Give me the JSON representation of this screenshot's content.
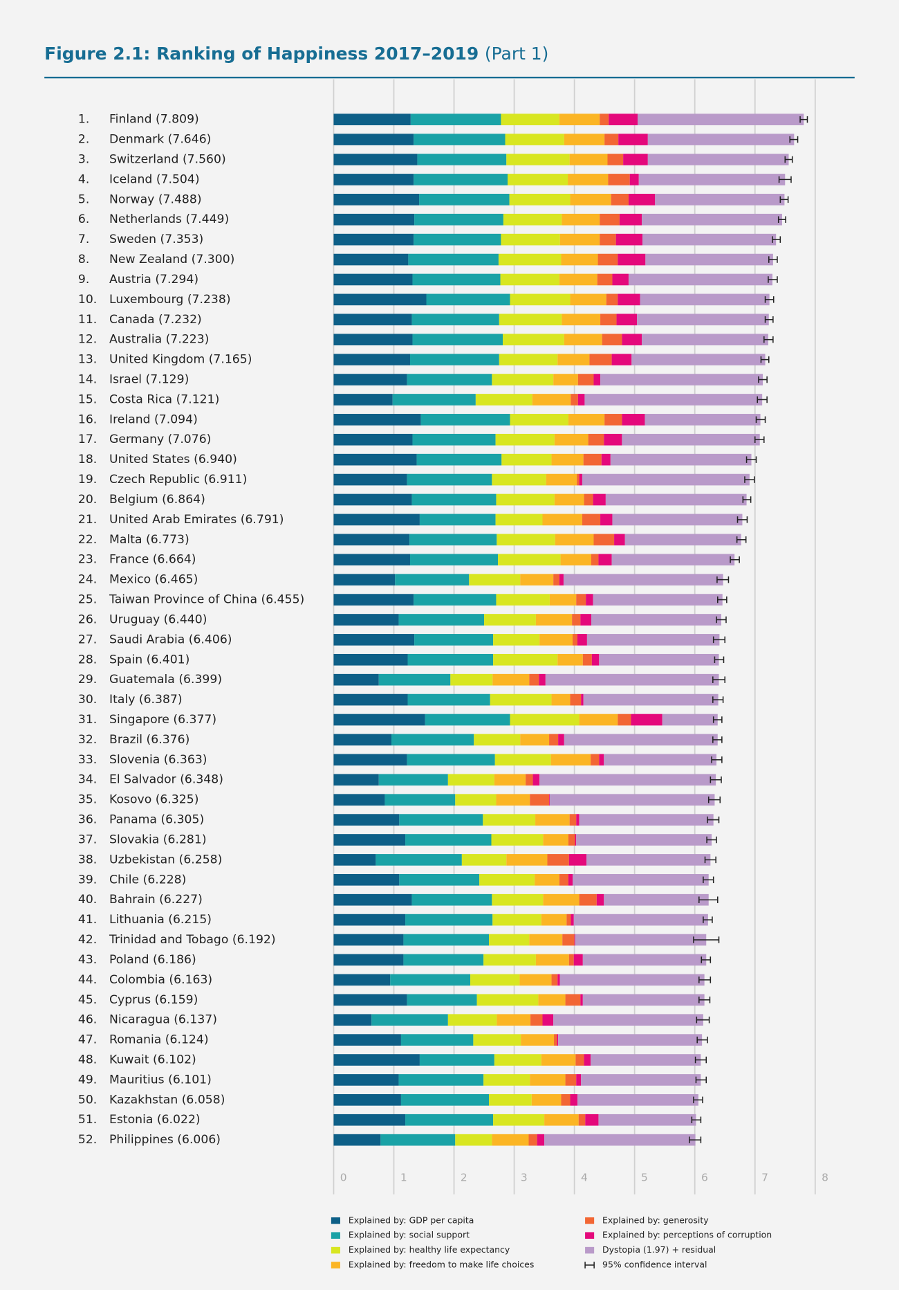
{
  "chart_data": {
    "type": "bar",
    "orientation": "horizontal",
    "stacked": true,
    "title": "Figure 2.1: Ranking of Happiness 2017–2019",
    "subtitle": "(Part 1)",
    "ranks": [
      "1.",
      "2.",
      "3.",
      "4.",
      "5.",
      "6.",
      "7.",
      "8.",
      "9.",
      "10.",
      "11.",
      "12.",
      "13.",
      "14.",
      "15.",
      "16.",
      "17.",
      "18.",
      "19.",
      "20.",
      "21.",
      "22.",
      "23.",
      "24.",
      "25.",
      "26.",
      "27.",
      "28.",
      "29.",
      "30.",
      "31.",
      "32.",
      "33.",
      "34.",
      "35.",
      "36.",
      "37.",
      "38.",
      "39.",
      "40.",
      "41.",
      "42.",
      "43.",
      "44.",
      "45.",
      "46.",
      "47.",
      "48.",
      "49.",
      "50.",
      "51.",
      "52."
    ],
    "categories": [
      "Finland (7.809)",
      "Denmark (7.646)",
      "Switzerland (7.560)",
      "Iceland (7.504)",
      "Norway (7.488)",
      "Netherlands (7.449)",
      "Sweden (7.353)",
      "New Zealand (7.300)",
      "Austria (7.294)",
      "Luxembourg (7.238)",
      "Canada (7.232)",
      "Australia (7.223)",
      "United Kingdom (7.165)",
      "Israel (7.129)",
      "Costa Rica (7.121)",
      "Ireland (7.094)",
      "Germany (7.076)",
      "United States (6.940)",
      "Czech Republic (6.911)",
      "Belgium (6.864)",
      "United Arab Emirates (6.791)",
      "Malta (6.773)",
      "France (6.664)",
      "Mexico (6.465)",
      "Taiwan Province of China (6.455)",
      "Uruguay (6.440)",
      "Saudi Arabia (6.406)",
      "Spain (6.401)",
      "Guatemala (6.399)",
      "Italy (6.387)",
      "Singapore (6.377)",
      "Brazil (6.376)",
      "Slovenia (6.363)",
      "El Salvador (6.348)",
      "Kosovo (6.325)",
      "Panama (6.305)",
      "Slovakia (6.281)",
      "Uzbekistan (6.258)",
      "Chile (6.228)",
      "Bahrain (6.227)",
      "Lithuania (6.215)",
      "Trinidad and Tobago (6.192)",
      "Poland (6.186)",
      "Colombia (6.163)",
      "Cyprus (6.159)",
      "Nicaragua (6.137)",
      "Romania (6.124)",
      "Kuwait (6.102)",
      "Mauritius (6.101)",
      "Kazakhstan (6.058)",
      "Estonia (6.022)",
      "Philippines (6.006)"
    ],
    "series": [
      {
        "name": "Explained by: GDP per capita",
        "color": "#0d5f87",
        "values": [
          1.28,
          1.33,
          1.39,
          1.33,
          1.42,
          1.34,
          1.33,
          1.24,
          1.31,
          1.54,
          1.3,
          1.31,
          1.27,
          1.22,
          0.98,
          1.45,
          1.31,
          1.38,
          1.22,
          1.3,
          1.43,
          1.26,
          1.27,
          1.02,
          1.33,
          1.08,
          1.34,
          1.23,
          0.75,
          1.23,
          1.52,
          0.96,
          1.22,
          0.75,
          0.85,
          1.09,
          1.19,
          0.7,
          1.09,
          1.3,
          1.19,
          1.16,
          1.16,
          0.94,
          1.22,
          0.63,
          1.12,
          1.43,
          1.08,
          1.12,
          1.19,
          0.78
        ]
      },
      {
        "name": "Explained by: social support",
        "color": "#1aa2a6",
        "values": [
          1.5,
          1.52,
          1.48,
          1.56,
          1.5,
          1.48,
          1.45,
          1.5,
          1.46,
          1.39,
          1.45,
          1.5,
          1.48,
          1.41,
          1.38,
          1.48,
          1.38,
          1.41,
          1.41,
          1.4,
          1.26,
          1.45,
          1.46,
          1.23,
          1.37,
          1.42,
          1.31,
          1.42,
          1.19,
          1.37,
          1.41,
          1.37,
          1.46,
          1.15,
          1.17,
          1.39,
          1.43,
          1.43,
          1.33,
          1.33,
          1.45,
          1.42,
          1.33,
          1.33,
          1.16,
          1.27,
          1.2,
          1.24,
          1.41,
          1.46,
          1.46,
          1.24
        ]
      },
      {
        "name": "Explained by: healthy life expectancy",
        "color": "#d8e621",
        "values": [
          0.97,
          0.98,
          1.05,
          1.0,
          1.01,
          0.97,
          0.98,
          1.04,
          0.98,
          1.0,
          1.04,
          1.02,
          0.97,
          1.02,
          0.94,
          0.97,
          0.98,
          0.83,
          0.9,
          0.97,
          0.78,
          0.97,
          1.04,
          0.85,
          0.89,
          0.86,
          0.77,
          1.07,
          0.7,
          1.02,
          1.15,
          0.77,
          0.93,
          0.77,
          0.68,
          0.87,
          0.86,
          0.74,
          0.92,
          0.85,
          0.81,
          0.67,
          0.87,
          0.82,
          1.02,
          0.81,
          0.79,
          0.78,
          0.77,
          0.71,
          0.85,
          0.61
        ]
      },
      {
        "name": "Explained by: freedom to make life choices",
        "color": "#fbb524",
        "values": [
          0.67,
          0.67,
          0.63,
          0.67,
          0.68,
          0.63,
          0.66,
          0.61,
          0.63,
          0.6,
          0.64,
          0.63,
          0.53,
          0.41,
          0.64,
          0.6,
          0.56,
          0.53,
          0.51,
          0.49,
          0.66,
          0.64,
          0.51,
          0.55,
          0.44,
          0.6,
          0.55,
          0.42,
          0.61,
          0.31,
          0.64,
          0.48,
          0.66,
          0.52,
          0.56,
          0.57,
          0.42,
          0.68,
          0.41,
          0.6,
          0.42,
          0.55,
          0.55,
          0.53,
          0.45,
          0.56,
          0.55,
          0.57,
          0.59,
          0.49,
          0.57,
          0.61
        ]
      },
      {
        "name": "Explained by: generosity",
        "color": "#f26634",
        "values": [
          0.15,
          0.23,
          0.26,
          0.36,
          0.29,
          0.33,
          0.27,
          0.33,
          0.25,
          0.19,
          0.27,
          0.33,
          0.37,
          0.26,
          0.12,
          0.29,
          0.26,
          0.3,
          0.04,
          0.15,
          0.3,
          0.34,
          0.12,
          0.1,
          0.16,
          0.14,
          0.08,
          0.15,
          0.16,
          0.18,
          0.22,
          0.15,
          0.14,
          0.12,
          0.32,
          0.11,
          0.11,
          0.36,
          0.15,
          0.29,
          0.07,
          0.2,
          0.08,
          0.1,
          0.25,
          0.2,
          0.05,
          0.14,
          0.18,
          0.15,
          0.11,
          0.14
        ]
      },
      {
        "name": "Explained by: perceptions of corruption",
        "color": "#e4097b",
        "values": [
          0.48,
          0.49,
          0.41,
          0.15,
          0.44,
          0.37,
          0.44,
          0.46,
          0.27,
          0.37,
          0.34,
          0.33,
          0.33,
          0.11,
          0.11,
          0.38,
          0.3,
          0.15,
          0.05,
          0.21,
          0.2,
          0.18,
          0.22,
          0.07,
          0.12,
          0.18,
          0.16,
          0.12,
          0.11,
          0.04,
          0.52,
          0.1,
          0.08,
          0.11,
          0.01,
          0.05,
          0.02,
          0.29,
          0.07,
          0.12,
          0.05,
          0.01,
          0.15,
          0.04,
          0.04,
          0.18,
          0.02,
          0.11,
          0.08,
          0.12,
          0.22,
          0.12
        ]
      },
      {
        "name": "Dystopia (1.97) + residual",
        "color": "#b99ac9",
        "values": [
          2.76,
          2.43,
          2.34,
          2.43,
          2.15,
          2.33,
          2.22,
          2.12,
          2.39,
          2.15,
          2.19,
          2.1,
          2.22,
          2.7,
          2.95,
          1.92,
          2.29,
          2.34,
          2.78,
          2.34,
          2.16,
          1.93,
          2.04,
          2.65,
          2.15,
          2.16,
          2.2,
          1.99,
          2.88,
          2.24,
          0.92,
          2.55,
          1.87,
          2.93,
          2.74,
          2.23,
          2.25,
          2.06,
          2.26,
          1.74,
          2.23,
          2.18,
          2.05,
          2.4,
          2.02,
          2.49,
          2.39,
          1.83,
          1.99,
          2.01,
          1.62,
          2.51
        ]
      }
    ],
    "confidence_interval": {
      "name": "95% confidence interval",
      "color": "#222222",
      "low": [
        7.75,
        7.58,
        7.5,
        7.4,
        7.42,
        7.39,
        7.29,
        7.23,
        7.22,
        7.17,
        7.17,
        7.15,
        7.1,
        7.06,
        7.04,
        7.02,
        7.0,
        6.86,
        6.83,
        6.8,
        6.71,
        6.7,
        6.59,
        6.37,
        6.38,
        6.36,
        6.31,
        6.33,
        6.3,
        6.3,
        6.31,
        6.3,
        6.28,
        6.26,
        6.23,
        6.21,
        6.2,
        6.17,
        6.14,
        6.07,
        6.14,
        5.98,
        6.11,
        6.07,
        6.07,
        6.03,
        6.04,
        6.01,
        6.02,
        5.98,
        5.95,
        5.91
      ],
      "high": [
        7.87,
        7.71,
        7.62,
        7.6,
        7.55,
        7.51,
        7.42,
        7.37,
        7.37,
        7.31,
        7.3,
        7.3,
        7.23,
        7.2,
        7.2,
        7.17,
        7.15,
        7.02,
        6.99,
        6.93,
        6.87,
        6.85,
        6.74,
        6.56,
        6.53,
        6.52,
        6.5,
        6.48,
        6.5,
        6.47,
        6.45,
        6.45,
        6.45,
        6.44,
        6.42,
        6.4,
        6.36,
        6.35,
        6.31,
        6.38,
        6.29,
        6.4,
        6.26,
        6.26,
        6.25,
        6.24,
        6.21,
        6.19,
        6.19,
        6.13,
        6.1,
        6.1
      ]
    },
    "xlim": [
      0,
      8
    ],
    "xticks": [
      0,
      1,
      2,
      3,
      4,
      5,
      6,
      7,
      8
    ],
    "grid": true
  }
}
